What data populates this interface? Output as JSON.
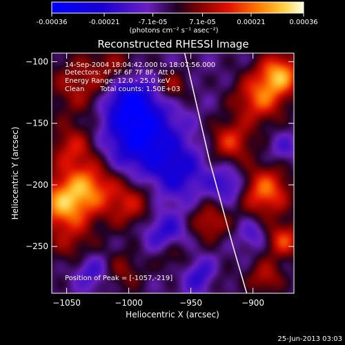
{
  "chart_data": {
    "type": "heatmap",
    "title": "Reconstructed RHESSI Image",
    "xlabel": "Heliocentric X (arcsec)",
    "ylabel": "Heliocentric Y (arcsec)",
    "xlim": [
      -1062,
      -867
    ],
    "ylim": [
      -288,
      -93
    ],
    "xticks": [
      -1050,
      -1000,
      -950,
      -900
    ],
    "yticks": [
      -250,
      -200,
      -150,
      -100
    ],
    "colorbar": {
      "ticks": [
        -0.00036,
        -0.00021,
        -7.1e-05,
        7.1e-05,
        0.00021,
        0.00036
      ],
      "tick_labels": [
        "-0.00036",
        "-0.00021",
        "-7.1e-05",
        "7.1e-05",
        "0.00021",
        "0.00036"
      ],
      "unit_label": "(photons cm⁻² s⁻¹ asec⁻²)"
    },
    "annotations": {
      "time_range": "14-Sep-2004 18:04:42.000 to 18:07:56.000",
      "detectors": "Detectors: 4F 5F 6F 7F 8F, Att 0",
      "energy": "Energy Range: 12.0 - 25.0 keV",
      "method": "Clean",
      "counts": "Total counts: 1.50E+03",
      "peak": "Position of Peak = [-1057,-219]"
    },
    "limb_curve": [
      [
        -955,
        -93
      ],
      [
        -935,
        -180
      ],
      [
        -916,
        -250
      ],
      [
        -905,
        -288
      ]
    ],
    "blobs": [
      {
        "x": -1052,
        "y": -215,
        "s": 16,
        "v": 1.0
      },
      {
        "x": -1030,
        "y": -200,
        "s": 14,
        "v": 0.65
      },
      {
        "x": -1045,
        "y": -170,
        "s": 13,
        "v": 0.55
      },
      {
        "x": -1040,
        "y": -120,
        "s": 18,
        "v": 0.45
      },
      {
        "x": -1010,
        "y": -105,
        "s": 14,
        "v": 0.35
      },
      {
        "x": -1000,
        "y": -215,
        "s": 14,
        "v": 0.55
      },
      {
        "x": -1045,
        "y": -250,
        "s": 14,
        "v": 0.3
      },
      {
        "x": -1005,
        "y": -270,
        "s": 12,
        "v": 0.35
      },
      {
        "x": -965,
        "y": -255,
        "s": 10,
        "v": 0.4
      },
      {
        "x": -965,
        "y": -120,
        "s": 9,
        "v": 0.45
      },
      {
        "x": -895,
        "y": -130,
        "s": 14,
        "v": 0.75
      },
      {
        "x": -878,
        "y": -110,
        "s": 12,
        "v": 0.95
      },
      {
        "x": -918,
        "y": -165,
        "s": 12,
        "v": 0.65
      },
      {
        "x": -890,
        "y": -205,
        "s": 14,
        "v": 0.85
      },
      {
        "x": -935,
        "y": -230,
        "s": 11,
        "v": 0.55
      },
      {
        "x": -875,
        "y": -245,
        "s": 10,
        "v": 0.7
      },
      {
        "x": -890,
        "y": -275,
        "s": 10,
        "v": 0.5
      },
      {
        "x": -930,
        "y": -278,
        "s": 9,
        "v": 0.35
      },
      {
        "x": -990,
        "y": -160,
        "s": 20,
        "v": -0.95
      },
      {
        "x": -1000,
        "y": -130,
        "s": 14,
        "v": -0.75
      },
      {
        "x": -960,
        "y": -190,
        "s": 16,
        "v": -0.55
      },
      {
        "x": -970,
        "y": -240,
        "s": 12,
        "v": -0.55
      },
      {
        "x": -940,
        "y": -275,
        "s": 10,
        "v": -0.6
      },
      {
        "x": -920,
        "y": -200,
        "s": 10,
        "v": -0.5
      },
      {
        "x": -1030,
        "y": -270,
        "s": 10,
        "v": -0.45
      },
      {
        "x": -900,
        "y": -240,
        "s": 8,
        "v": -0.35
      },
      {
        "x": -875,
        "y": -170,
        "s": 8,
        "v": -0.3
      }
    ]
  },
  "footer": {
    "date": "25-Jun-2013 03:03"
  }
}
